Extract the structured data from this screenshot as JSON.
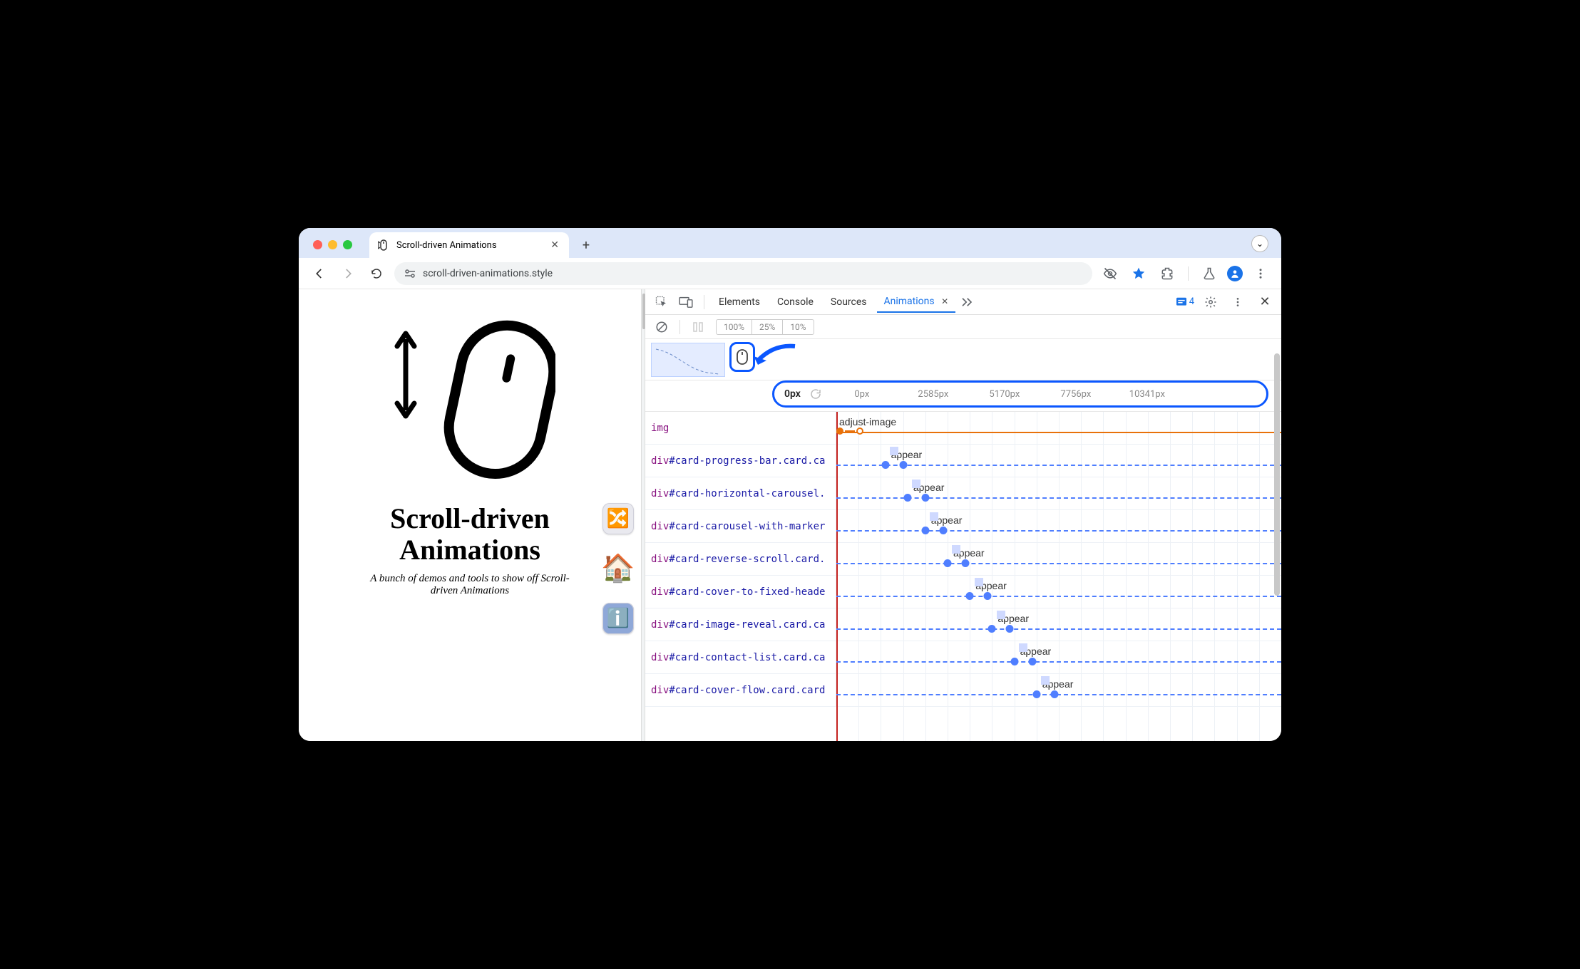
{
  "tab": {
    "title": "Scroll-driven Animations"
  },
  "address": {
    "url": "scroll-driven-animations.style"
  },
  "page": {
    "heading_line1": "Scroll-driven",
    "heading_line2": "Animations",
    "subtitle": "A bunch of demos and tools to show off Scroll-driven Animations"
  },
  "devtools": {
    "tabs": {
      "elements": "Elements",
      "console": "Console",
      "sources": "Sources",
      "animations": "Animations"
    },
    "issue_count": "4",
    "speeds": {
      "s100": "100%",
      "s25": "25%",
      "s10": "10%"
    },
    "ruler": {
      "current": "0px",
      "ticks": [
        "0px",
        "2585px",
        "5170px",
        "7756px",
        "10341px"
      ]
    },
    "rows": [
      {
        "tag": "img",
        "selector": "",
        "animation": "adjust-image",
        "color": "#e8710a",
        "start_pct": 0,
        "end_pct": 100,
        "kf1_pct": 0,
        "kf2_pct": 4
      },
      {
        "tag": "div",
        "selector": "#card-progress-bar.card.ca",
        "animation": "appear",
        "color": "#4f7eff",
        "start_pct": 0,
        "end_pct": 100,
        "kf1_pct": 11,
        "kf2_pct": 15
      },
      {
        "tag": "div",
        "selector": "#card-horizontal-carousel.",
        "animation": "appear",
        "color": "#4f7eff",
        "start_pct": 0,
        "end_pct": 100,
        "kf1_pct": 16,
        "kf2_pct": 20
      },
      {
        "tag": "div",
        "selector": "#card-carousel-with-marker",
        "animation": "appear",
        "color": "#4f7eff",
        "start_pct": 0,
        "end_pct": 100,
        "kf1_pct": 20,
        "kf2_pct": 24
      },
      {
        "tag": "div",
        "selector": "#card-reverse-scroll.card.",
        "animation": "appear",
        "color": "#4f7eff",
        "start_pct": 0,
        "end_pct": 100,
        "kf1_pct": 25,
        "kf2_pct": 29
      },
      {
        "tag": "div",
        "selector": "#card-cover-to-fixed-heade",
        "animation": "appear",
        "color": "#4f7eff",
        "start_pct": 0,
        "end_pct": 100,
        "kf1_pct": 30,
        "kf2_pct": 34
      },
      {
        "tag": "div",
        "selector": "#card-image-reveal.card.ca",
        "animation": "appear",
        "color": "#4f7eff",
        "start_pct": 0,
        "end_pct": 100,
        "kf1_pct": 35,
        "kf2_pct": 39
      },
      {
        "tag": "div",
        "selector": "#card-contact-list.card.ca",
        "animation": "appear",
        "color": "#4f7eff",
        "start_pct": 0,
        "end_pct": 100,
        "kf1_pct": 40,
        "kf2_pct": 44
      },
      {
        "tag": "div",
        "selector": "#card-cover-flow.card.card",
        "animation": "appear",
        "color": "#4f7eff",
        "start_pct": 0,
        "end_pct": 100,
        "kf1_pct": 45,
        "kf2_pct": 49
      }
    ]
  }
}
